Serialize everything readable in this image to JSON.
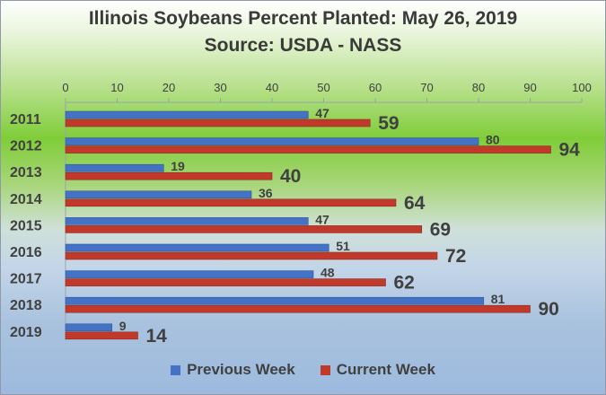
{
  "chart_data": {
    "type": "bar",
    "orientation": "horizontal",
    "title": "Illinois Soybeans Percent Planted: May 26, 2019",
    "subtitle": "Source: USDA - NASS",
    "categories": [
      "2011",
      "2012",
      "2013",
      "2014",
      "2015",
      "2016",
      "2017",
      "2018",
      "2019"
    ],
    "series": [
      {
        "name": "Previous Week",
        "color": "#4472c4",
        "values": [
          47,
          80,
          19,
          36,
          47,
          51,
          48,
          81,
          9
        ]
      },
      {
        "name": "Current Week",
        "color": "#c0392b",
        "values": [
          59,
          94,
          40,
          64,
          69,
          72,
          62,
          90,
          14
        ]
      }
    ],
    "x_ticks": [
      "0",
      "10",
      "20",
      "30",
      "40",
      "50",
      "60",
      "70",
      "80",
      "90",
      "100"
    ],
    "xlim": [
      0,
      100
    ],
    "axis_position": "top",
    "grid": false,
    "legend": "bottom"
  }
}
